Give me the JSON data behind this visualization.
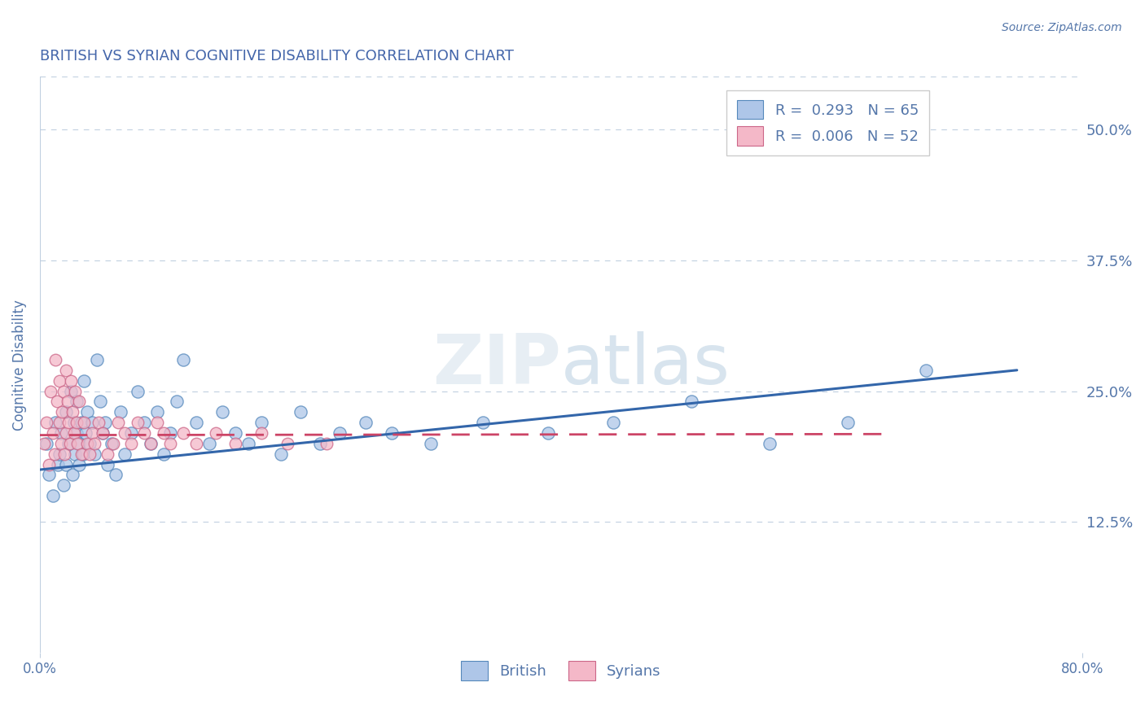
{
  "title": "BRITISH VS SYRIAN COGNITIVE DISABILITY CORRELATION CHART",
  "source_text": "Source: ZipAtlas.com",
  "ylabel": "Cognitive Disability",
  "british_R": 0.293,
  "british_N": 65,
  "syrian_R": 0.006,
  "syrian_N": 52,
  "xlim": [
    0.0,
    0.8
  ],
  "ylim": [
    0.0,
    0.55
  ],
  "yticks": [
    0.125,
    0.25,
    0.375,
    0.5
  ],
  "ytick_labels": [
    "12.5%",
    "25.0%",
    "37.5%",
    "50.0%"
  ],
  "british_color": "#aec6e8",
  "british_edge_color": "#5588bb",
  "syrian_color": "#f4b8c8",
  "syrian_edge_color": "#cc6688",
  "british_line_color": "#3366aa",
  "syrian_line_color": "#cc4466",
  "grid_color": "#c0cfe0",
  "title_color": "#4466aa",
  "tick_color": "#5577aa",
  "background_color": "#ffffff",
  "british_x": [
    0.005,
    0.007,
    0.01,
    0.012,
    0.014,
    0.015,
    0.016,
    0.018,
    0.02,
    0.02,
    0.022,
    0.024,
    0.025,
    0.026,
    0.027,
    0.028,
    0.028,
    0.03,
    0.03,
    0.032,
    0.033,
    0.034,
    0.035,
    0.036,
    0.038,
    0.04,
    0.042,
    0.044,
    0.046,
    0.048,
    0.05,
    0.052,
    0.055,
    0.058,
    0.062,
    0.065,
    0.07,
    0.075,
    0.08,
    0.085,
    0.09,
    0.095,
    0.1,
    0.105,
    0.11,
    0.12,
    0.13,
    0.14,
    0.15,
    0.16,
    0.17,
    0.185,
    0.2,
    0.215,
    0.23,
    0.25,
    0.27,
    0.3,
    0.34,
    0.39,
    0.44,
    0.5,
    0.56,
    0.62,
    0.68
  ],
  "british_y": [
    0.2,
    0.17,
    0.15,
    0.22,
    0.18,
    0.19,
    0.21,
    0.16,
    0.23,
    0.18,
    0.2,
    0.25,
    0.17,
    0.22,
    0.19,
    0.21,
    0.24,
    0.2,
    0.18,
    0.22,
    0.19,
    0.26,
    0.21,
    0.23,
    0.2,
    0.22,
    0.19,
    0.28,
    0.24,
    0.21,
    0.22,
    0.18,
    0.2,
    0.17,
    0.23,
    0.19,
    0.21,
    0.25,
    0.22,
    0.2,
    0.23,
    0.19,
    0.21,
    0.24,
    0.28,
    0.22,
    0.2,
    0.23,
    0.21,
    0.2,
    0.22,
    0.19,
    0.23,
    0.2,
    0.21,
    0.22,
    0.21,
    0.2,
    0.22,
    0.21,
    0.22,
    0.24,
    0.2,
    0.22,
    0.27
  ],
  "syrian_x": [
    0.003,
    0.005,
    0.007,
    0.008,
    0.01,
    0.011,
    0.012,
    0.013,
    0.015,
    0.015,
    0.016,
    0.017,
    0.018,
    0.019,
    0.02,
    0.02,
    0.021,
    0.022,
    0.023,
    0.024,
    0.025,
    0.026,
    0.027,
    0.028,
    0.029,
    0.03,
    0.032,
    0.034,
    0.036,
    0.038,
    0.04,
    0.042,
    0.045,
    0.048,
    0.052,
    0.056,
    0.06,
    0.065,
    0.07,
    0.075,
    0.08,
    0.085,
    0.09,
    0.095,
    0.1,
    0.11,
    0.12,
    0.135,
    0.15,
    0.17,
    0.19,
    0.22
  ],
  "syrian_y": [
    0.2,
    0.22,
    0.18,
    0.25,
    0.21,
    0.19,
    0.28,
    0.24,
    0.22,
    0.26,
    0.2,
    0.23,
    0.25,
    0.19,
    0.27,
    0.21,
    0.24,
    0.22,
    0.2,
    0.26,
    0.23,
    0.21,
    0.25,
    0.22,
    0.2,
    0.24,
    0.19,
    0.22,
    0.2,
    0.19,
    0.21,
    0.2,
    0.22,
    0.21,
    0.19,
    0.2,
    0.22,
    0.21,
    0.2,
    0.22,
    0.21,
    0.2,
    0.22,
    0.21,
    0.2,
    0.21,
    0.2,
    0.21,
    0.2,
    0.21,
    0.2,
    0.2
  ],
  "brit_line_x0": 0.0,
  "brit_line_y0": 0.175,
  "brit_line_x1": 0.75,
  "brit_line_y1": 0.27,
  "syr_line_x0": 0.0,
  "syr_line_y0": 0.208,
  "syr_line_x1": 0.65,
  "syr_line_y1": 0.209
}
